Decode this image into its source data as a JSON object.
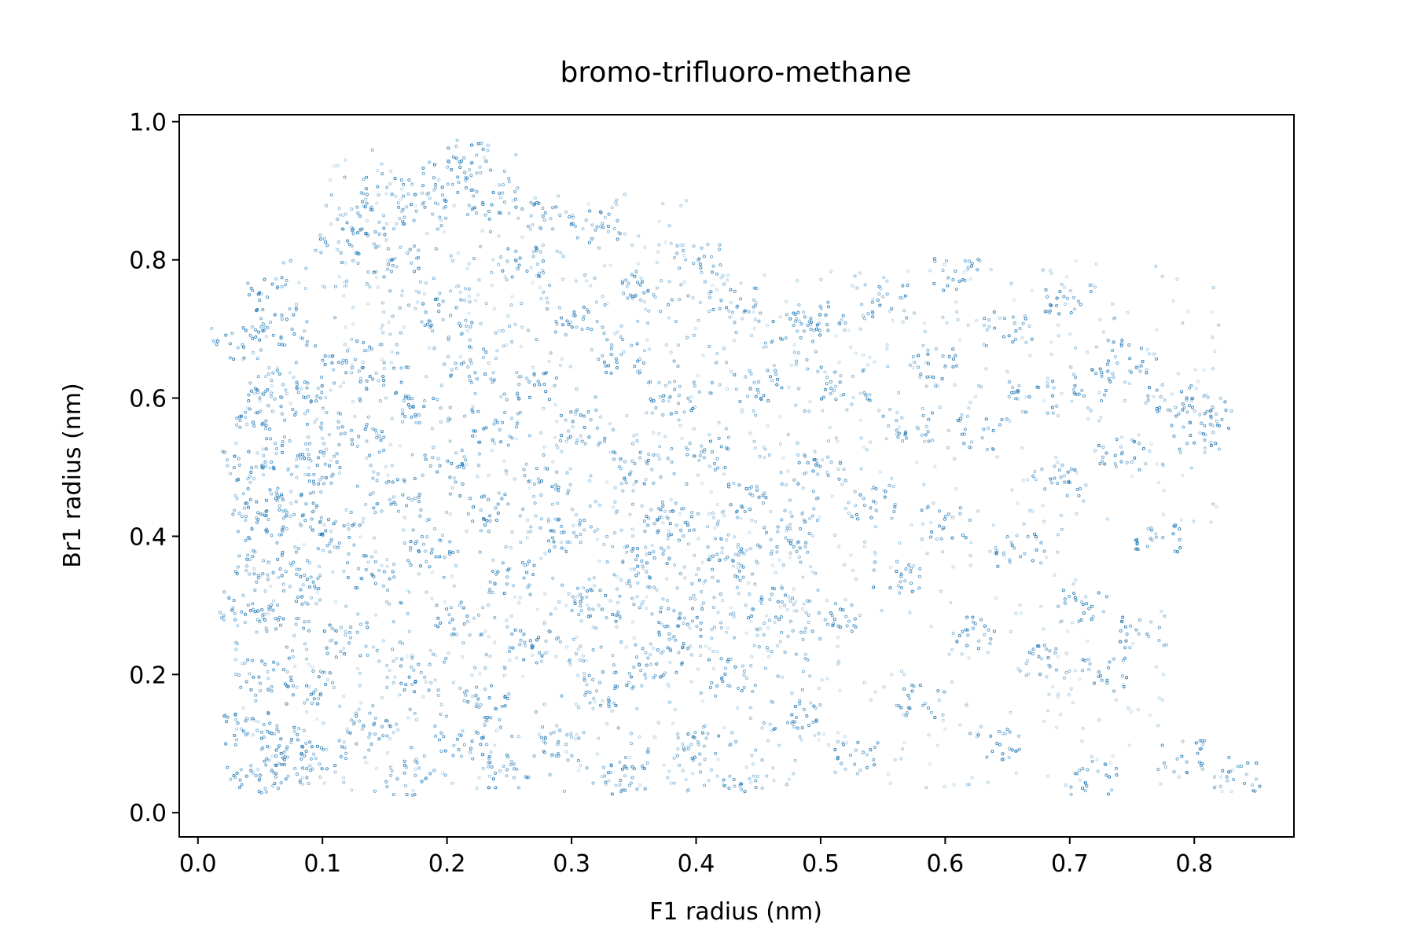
{
  "chart_data": {
    "type": "scatter",
    "title": "bromo-trifluoro-methane",
    "xlabel": "F1 radius (nm)",
    "ylabel": "Br1 radius (nm)",
    "xlim": [
      -0.015,
      0.88
    ],
    "ylim": [
      -0.035,
      1.01
    ],
    "xticks": [
      0.0,
      0.1,
      0.2,
      0.3,
      0.4,
      0.5,
      0.6,
      0.7,
      0.8
    ],
    "xtick_labels": [
      "0.0",
      "0.1",
      "0.2",
      "0.3",
      "0.4",
      "0.5",
      "0.6",
      "0.7",
      "0.8"
    ],
    "yticks": [
      0.0,
      0.2,
      0.4,
      0.6,
      0.8,
      1.0
    ],
    "ytick_labels": [
      "0.0",
      "0.2",
      "0.4",
      "0.6",
      "0.8",
      "1.0"
    ],
    "grid": false,
    "legend": "none",
    "color": "#1f77b4",
    "marker": "hollow circle, small, semi-transparent",
    "series": [
      {
        "points": [
          [
            0.03,
            0.68
          ],
          [
            0.035,
            0.5
          ],
          [
            0.035,
            0.3
          ],
          [
            0.04,
            0.12
          ],
          [
            0.04,
            0.05
          ],
          [
            0.045,
            0.45
          ],
          [
            0.05,
            0.58
          ],
          [
            0.05,
            0.36
          ],
          [
            0.055,
            0.2
          ],
          [
            0.06,
            0.75
          ],
          [
            0.06,
            0.62
          ],
          [
            0.06,
            0.42
          ],
          [
            0.065,
            0.1
          ],
          [
            0.07,
            0.7
          ],
          [
            0.07,
            0.52
          ],
          [
            0.07,
            0.28
          ],
          [
            0.075,
            0.06
          ],
          [
            0.08,
            0.44
          ],
          [
            0.085,
            0.33
          ],
          [
            0.09,
            0.6
          ],
          [
            0.09,
            0.18
          ],
          [
            0.1,
            0.5
          ],
          [
            0.1,
            0.08
          ],
          [
            0.11,
            0.82
          ],
          [
            0.11,
            0.4
          ],
          [
            0.12,
            0.66
          ],
          [
            0.12,
            0.25
          ],
          [
            0.13,
            0.86
          ],
          [
            0.13,
            0.54
          ],
          [
            0.14,
            0.35
          ],
          [
            0.14,
            0.12
          ],
          [
            0.15,
            0.9
          ],
          [
            0.15,
            0.62
          ],
          [
            0.16,
            0.8
          ],
          [
            0.16,
            0.46
          ],
          [
            0.17,
            0.2
          ],
          [
            0.17,
            0.05
          ],
          [
            0.18,
            0.87
          ],
          [
            0.18,
            0.58
          ],
          [
            0.19,
            0.38
          ],
          [
            0.2,
            0.92
          ],
          [
            0.2,
            0.72
          ],
          [
            0.2,
            0.5
          ],
          [
            0.21,
            0.28
          ],
          [
            0.21,
            0.1
          ],
          [
            0.22,
            0.95
          ],
          [
            0.22,
            0.65
          ],
          [
            0.23,
            0.44
          ],
          [
            0.23,
            0.16
          ],
          [
            0.24,
            0.88
          ],
          [
            0.24,
            0.56
          ],
          [
            0.25,
            0.34
          ],
          [
            0.25,
            0.06
          ],
          [
            0.26,
            0.8
          ],
          [
            0.27,
            0.62
          ],
          [
            0.27,
            0.24
          ],
          [
            0.28,
            0.86
          ],
          [
            0.28,
            0.48
          ],
          [
            0.29,
            0.1
          ],
          [
            0.3,
            0.72
          ],
          [
            0.3,
            0.4
          ],
          [
            0.31,
            0.56
          ],
          [
            0.32,
            0.85
          ],
          [
            0.32,
            0.3
          ],
          [
            0.33,
            0.18
          ],
          [
            0.34,
            0.66
          ],
          [
            0.34,
            0.05
          ],
          [
            0.35,
            0.5
          ],
          [
            0.36,
            0.76
          ],
          [
            0.36,
            0.36
          ],
          [
            0.37,
            0.22
          ],
          [
            0.38,
            0.6
          ],
          [
            0.38,
            0.42
          ],
          [
            0.39,
            0.28
          ],
          [
            0.4,
            0.8
          ],
          [
            0.4,
            0.1
          ],
          [
            0.41,
            0.52
          ],
          [
            0.42,
            0.36
          ],
          [
            0.43,
            0.74
          ],
          [
            0.43,
            0.2
          ],
          [
            0.44,
            0.46
          ],
          [
            0.44,
            0.03
          ],
          [
            0.45,
            0.62
          ],
          [
            0.46,
            0.3
          ],
          [
            0.47,
            0.4
          ],
          [
            0.48,
            0.7
          ],
          [
            0.48,
            0.14
          ],
          [
            0.5,
            0.72
          ],
          [
            0.5,
            0.5
          ],
          [
            0.51,
            0.28
          ],
          [
            0.52,
            0.62
          ],
          [
            0.53,
            0.08
          ],
          [
            0.54,
            0.45
          ],
          [
            0.55,
            0.74
          ],
          [
            0.56,
            0.34
          ],
          [
            0.57,
            0.56
          ],
          [
            0.58,
            0.16
          ],
          [
            0.59,
            0.65
          ],
          [
            0.6,
            0.42
          ],
          [
            0.61,
            0.78
          ],
          [
            0.62,
            0.26
          ],
          [
            0.63,
            0.55
          ],
          [
            0.64,
            0.1
          ],
          [
            0.65,
            0.7
          ],
          [
            0.66,
            0.38
          ],
          [
            0.67,
            0.6
          ],
          [
            0.68,
            0.22
          ],
          [
            0.69,
            0.48
          ],
          [
            0.7,
            0.74
          ],
          [
            0.71,
            0.3
          ],
          [
            0.72,
            0.62
          ],
          [
            0.72,
            0.05
          ],
          [
            0.73,
            0.2
          ],
          [
            0.74,
            0.52
          ],
          [
            0.75,
            0.66
          ],
          [
            0.76,
            0.26
          ],
          [
            0.77,
            0.4
          ],
          [
            0.78,
            0.6
          ],
          [
            0.79,
            0.08
          ],
          [
            0.8,
            0.55
          ],
          [
            0.81,
            0.58
          ],
          [
            0.835,
            0.055
          ]
        ]
      }
    ],
    "regions": [
      {
        "x": [
          0.03,
          0.1
        ],
        "y": [
          0.03,
          0.7
        ],
        "density": 1.0
      },
      {
        "x": [
          0.06,
          0.09
        ],
        "y": [
          0.68,
          0.8
        ],
        "density": 0.9
      },
      {
        "x": [
          0.1,
          0.26
        ],
        "y": [
          0.76,
          0.96
        ],
        "density": 0.8
      },
      {
        "x": [
          0.26,
          0.4
        ],
        "y": [
          0.76,
          0.9
        ],
        "density": 0.6
      },
      {
        "x": [
          0.1,
          0.5
        ],
        "y": [
          0.03,
          0.78
        ],
        "density": 0.85
      },
      {
        "x": [
          0.3,
          0.5
        ],
        "y": [
          0.22,
          0.45
        ],
        "density": 0.9
      },
      {
        "x": [
          0.5,
          0.82
        ],
        "y": [
          0.4,
          0.8
        ],
        "density": 0.5
      },
      {
        "x": [
          0.5,
          0.72
        ],
        "y": [
          0.03,
          0.4
        ],
        "density": 0.35
      },
      {
        "x": [
          0.66,
          0.78
        ],
        "y": [
          0.12,
          0.3
        ],
        "density": 0.3
      },
      {
        "x": [
          0.68,
          0.84
        ],
        "y": [
          0.03,
          0.1
        ],
        "density": 0.25
      }
    ]
  }
}
